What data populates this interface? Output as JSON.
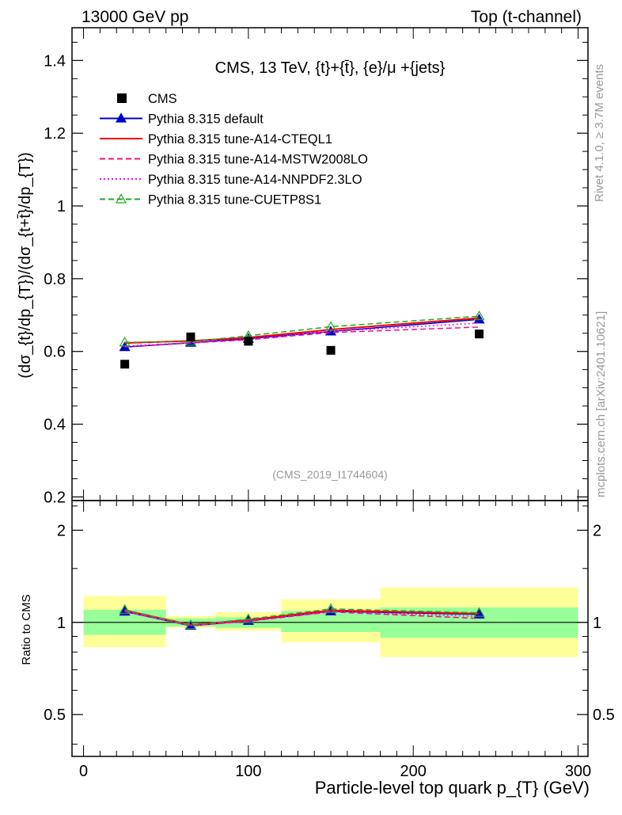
{
  "header": {
    "left": "13000 GeV pp",
    "right": "Top (t-channel)"
  },
  "side_labels": {
    "rivet": "Rivet 4.1.0, ≥ 3.7M events",
    "mcplots": "mcplots.cern.ch [arXiv:2401.10621]"
  },
  "chart_data": [
    {
      "type": "line",
      "panel": "main",
      "title": "CMS, 13 TeV, {t}+{t̄}, {e}/μ +{jets}",
      "ylabel": "(dσ_{t}/dp_{T})/(dσ_{t+t̄}/dp_{T})",
      "xlim": [
        -7,
        306
      ],
      "ylim": [
        0.19,
        1.49
      ],
      "yticks": [
        0.2,
        0.4,
        0.6,
        0.8,
        1,
        1.2,
        1.4
      ],
      "yticklabels": [
        "0.2",
        "0.4",
        "0.6",
        "0.8",
        "1",
        "1.2",
        "1.4"
      ],
      "watermark": "(CMS_2019_I1744604)",
      "legend_position": "top-left",
      "x": [
        25,
        65,
        100,
        150,
        240
      ],
      "data": {
        "name": "CMS",
        "values": [
          0.565,
          0.64,
          0.628,
          0.603,
          0.648
        ],
        "color": "#000000"
      },
      "series": [
        {
          "name": "Pythia 8.315 default",
          "values": [
            0.612,
            0.624,
            0.635,
            0.655,
            0.688
          ],
          "color": "#0000cc",
          "style": "solid",
          "marker": "filled-triangle"
        },
        {
          "name": "Pythia 8.315 tune-A14-CTEQL1",
          "values": [
            0.623,
            0.629,
            0.638,
            0.66,
            0.692
          ],
          "color": "#ff0000",
          "style": "solid",
          "marker": "none"
        },
        {
          "name": "Pythia 8.315 tune-A14-MSTW2008LO",
          "values": [
            0.613,
            0.623,
            0.632,
            0.652,
            0.667
          ],
          "color": "#ee1188",
          "style": "dashed",
          "marker": "none"
        },
        {
          "name": "Pythia 8.315 tune-A14-NNPDF2.3LO",
          "values": [
            0.615,
            0.624,
            0.633,
            0.655,
            0.678
          ],
          "color": "#ff00ff",
          "style": "dotted",
          "marker": "none"
        },
        {
          "name": "Pythia 8.315 tune-CUETP8S1",
          "values": [
            0.625,
            0.627,
            0.643,
            0.668,
            0.697
          ],
          "color": "#22aa22",
          "style": "dashed",
          "marker": "open-triangle"
        }
      ]
    },
    {
      "type": "line",
      "panel": "ratio",
      "ylabel": "Ratio to CMS",
      "xlabel": "Particle-level top quark p_{T} (GeV)",
      "xlim": [
        -7,
        306
      ],
      "xticks": [
        0,
        100,
        200,
        300
      ],
      "xticklabels": [
        "0",
        "100",
        "200",
        "300"
      ],
      "ylim": [
        0.365,
        2.5
      ],
      "yscale": "log",
      "yticks": [
        0.5,
        1,
        2
      ],
      "yticklabels": [
        "0.5",
        "1",
        "2"
      ],
      "bins": [
        [
          0,
          50
        ],
        [
          50,
          80
        ],
        [
          80,
          120
        ],
        [
          120,
          180
        ],
        [
          180,
          300
        ]
      ],
      "band_inner": [
        [
          0.91,
          1.1
        ],
        [
          0.97,
          1.03
        ],
        [
          0.96,
          1.04
        ],
        [
          0.93,
          1.09
        ],
        [
          0.89,
          1.12
        ]
      ],
      "band_outer": [
        [
          0.83,
          1.22
        ],
        [
          0.96,
          1.05
        ],
        [
          0.94,
          1.08
        ],
        [
          0.86,
          1.19
        ],
        [
          0.77,
          1.3
        ]
      ],
      "band_colors": {
        "inner": "#99ff99",
        "outer": "#ffff99"
      },
      "x": [
        25,
        65,
        100,
        150,
        240
      ],
      "series": [
        {
          "name": "Pythia 8.315 default",
          "values": [
            1.085,
            0.975,
            1.012,
            1.087,
            1.062
          ],
          "color": "#0000cc",
          "style": "solid",
          "marker": "filled-triangle"
        },
        {
          "name": "Pythia 8.315 tune-A14-CTEQL1",
          "values": [
            1.095,
            0.982,
            1.018,
            1.095,
            1.068
          ],
          "color": "#ff0000",
          "style": "solid",
          "marker": "none"
        },
        {
          "name": "Pythia 8.315 tune-A14-MSTW2008LO",
          "values": [
            1.085,
            0.975,
            1.008,
            1.082,
            1.03
          ],
          "color": "#ee1188",
          "style": "dashed",
          "marker": "none"
        },
        {
          "name": "Pythia 8.315 tune-A14-NNPDF2.3LO",
          "values": [
            1.088,
            0.976,
            1.01,
            1.086,
            1.046
          ],
          "color": "#ff00ff",
          "style": "dotted",
          "marker": "none"
        },
        {
          "name": "Pythia 8.315 tune-CUETP8S1",
          "values": [
            1.1,
            0.98,
            1.025,
            1.107,
            1.075
          ],
          "color": "#22aa22",
          "style": "dashed",
          "marker": "open-triangle"
        }
      ]
    }
  ]
}
